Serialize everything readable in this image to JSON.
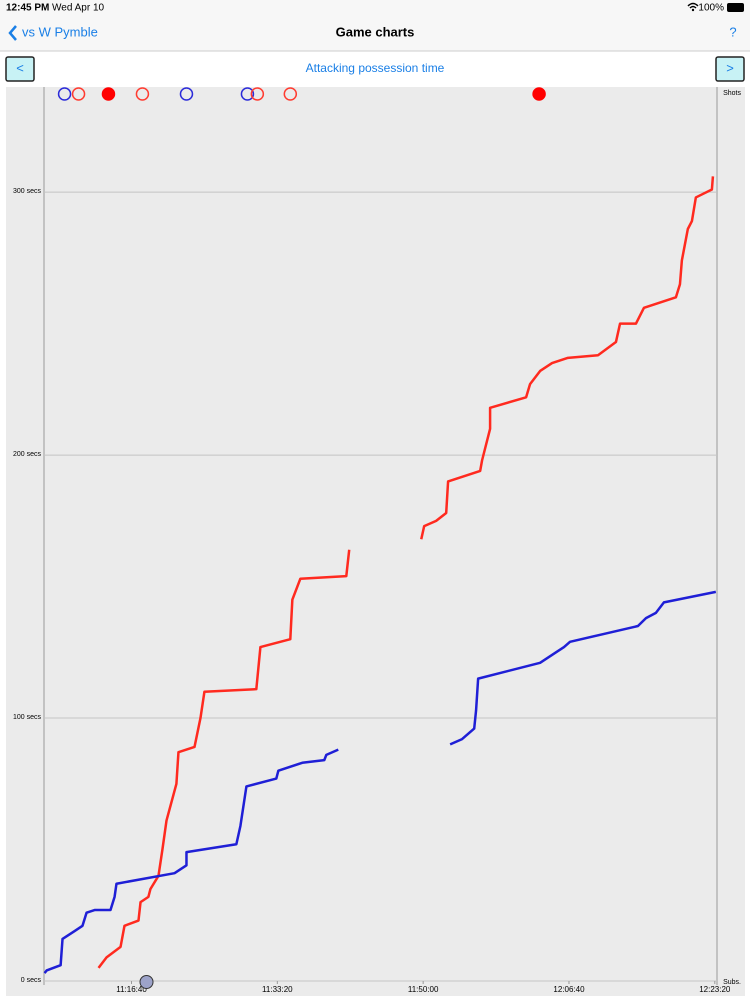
{
  "status_bar": {
    "time": "12:45 PM",
    "date": "Wed Apr 10",
    "battery": "100%"
  },
  "nav": {
    "back": "vs W Pymble",
    "title": "Game charts",
    "help": "?"
  },
  "toolbar": {
    "prev": "<",
    "next": ">"
  },
  "chart_data": {
    "type": "line",
    "title": "Attacking possession time",
    "right_top_label": "Shots",
    "right_bottom_label": "Subs.",
    "xlim": [
      40000,
      44615
    ],
    "xticks": [
      {
        "value": 40600,
        "label": "11:16:40"
      },
      {
        "value": 41600,
        "label": "11:33:20"
      },
      {
        "value": 42600,
        "label": "11:50:00"
      },
      {
        "value": 43600,
        "label": "12:06:40"
      },
      {
        "value": 44600,
        "label": "12:23:20"
      }
    ],
    "ylim": [
      0,
      340
    ],
    "yticks": [
      {
        "value": 0,
        "label": "0 secs"
      },
      {
        "value": 100,
        "label": "100 secs"
      },
      {
        "value": 200,
        "label": "200 secs"
      },
      {
        "value": 300,
        "label": "300 secs"
      }
    ],
    "grid": true,
    "series": [
      {
        "color": "#ff2a1f",
        "x": [
          40374,
          40429,
          40525,
          40552,
          40648,
          40662,
          40716,
          40730,
          40785,
          40812,
          40840,
          40908,
          40922,
          41032,
          41073,
          41100,
          41456,
          41484,
          41689,
          41703,
          41758,
          42073,
          42093,
          null,
          42587,
          42607,
          42689,
          42758,
          42771,
          42991,
          43004,
          43059,
          43059,
          43306,
          43333,
          43402,
          43484,
          43593,
          43799,
          43922,
          43950,
          44059,
          44114,
          44333,
          44361,
          44374,
          44415,
          44443,
          44470,
          44580,
          44587
        ],
        "values": [
          5,
          9,
          13,
          21,
          23,
          30,
          32,
          35,
          40,
          50,
          61,
          75,
          87,
          89,
          100,
          110,
          111,
          127,
          130,
          145,
          153,
          154,
          164,
          null,
          168,
          173,
          175,
          178,
          190,
          194,
          198,
          210,
          218,
          222,
          227,
          232,
          235,
          237,
          238,
          243,
          250,
          250,
          256,
          260,
          265,
          274,
          286,
          289,
          298,
          301,
          306
        ]
      },
      {
        "color": "#1f1fd6",
        "x": [
          40004,
          40018,
          40114,
          40127,
          40210,
          40264,
          40292,
          40347,
          40456,
          40484,
          40497,
          40895,
          40977,
          40977,
          41319,
          41347,
          41388,
          41593,
          41607,
          41771,
          41922,
          41936,
          42018,
          null,
          42785,
          42867,
          42950,
          42963,
          42977,
          43402,
          43511,
          43566,
          43607,
          43840,
          44073,
          44128,
          44196,
          44251,
          44607
        ],
        "values": [
          3,
          4,
          6,
          16,
          19,
          21,
          26,
          27,
          27,
          32,
          37,
          41,
          44,
          49,
          52,
          59,
          74,
          77,
          80,
          83,
          84,
          86,
          88,
          null,
          90,
          92,
          96,
          103,
          115,
          121,
          125,
          127,
          129,
          132,
          135,
          138,
          140,
          144,
          148
        ]
      }
    ],
    "shots": {
      "x": [
        40141,
        40237,
        40442,
        40675,
        40977,
        41395,
        41463,
        41689,
        43395
      ],
      "colors": [
        "#2b2bd9",
        "#ff3b30",
        "#ff0000",
        "#ff3b30",
        "#2b2bd9",
        "#2b2bd9",
        "#ff3b30",
        "#ff3b30",
        "#ff0000"
      ],
      "filled": [
        false,
        false,
        true,
        false,
        false,
        false,
        false,
        false,
        true
      ]
    },
    "subs": {
      "x": [
        40703
      ],
      "color": "#9da3c9"
    }
  }
}
